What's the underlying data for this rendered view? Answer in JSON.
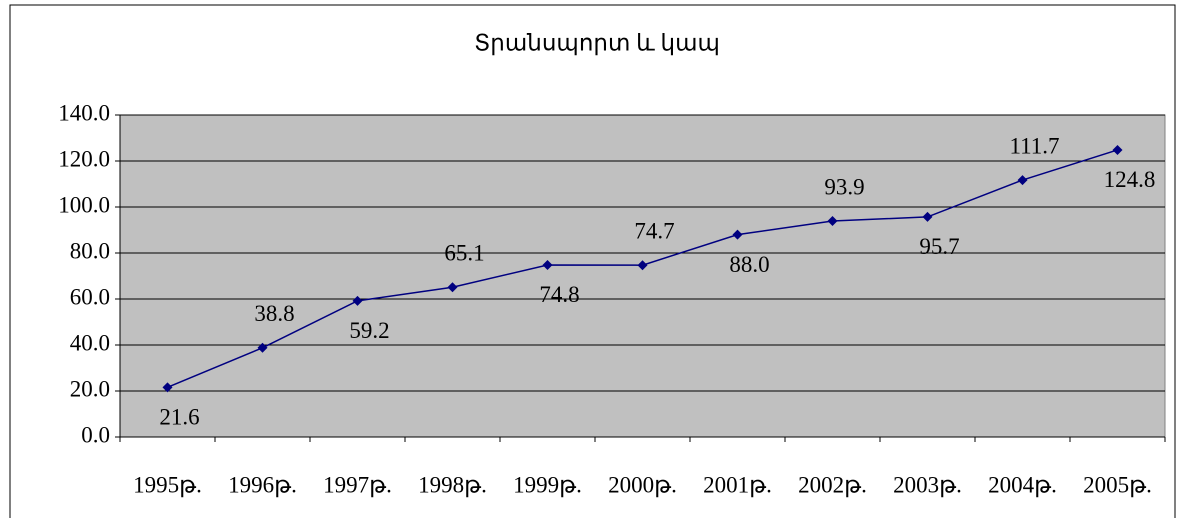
{
  "chart_data": {
    "type": "line",
    "title": "Տրանսպորտ և կապ",
    "categories": [
      "1995թ.",
      "1996թ.",
      "1997թ.",
      "1998թ.",
      "1999թ.",
      "2000թ.",
      "2001թ.",
      "2002թ.",
      "2003թ.",
      "2004թ.",
      "2005թ."
    ],
    "values": [
      21.6,
      38.8,
      59.2,
      65.1,
      74.8,
      74.7,
      88.0,
      93.9,
      95.7,
      111.7,
      124.8
    ],
    "value_labels": [
      "21.6",
      "38.8",
      "59.2",
      "65.1",
      "74.8",
      "74.7",
      "88.0",
      "93.9",
      "95.7",
      "111.7",
      "124.8"
    ],
    "color": "#000080",
    "ylim": [
      0,
      140
    ],
    "yticks": [
      {
        "value": 0,
        "label": "0.0"
      },
      {
        "value": 20,
        "label": "20.0"
      },
      {
        "value": 40,
        "label": "40.0"
      },
      {
        "value": 60,
        "label": "60.0"
      },
      {
        "value": 80,
        "label": "80.0"
      },
      {
        "value": 100,
        "label": "100.0"
      },
      {
        "value": 120,
        "label": "120.0"
      },
      {
        "value": 140,
        "label": "140.0"
      }
    ],
    "grid": true
  }
}
